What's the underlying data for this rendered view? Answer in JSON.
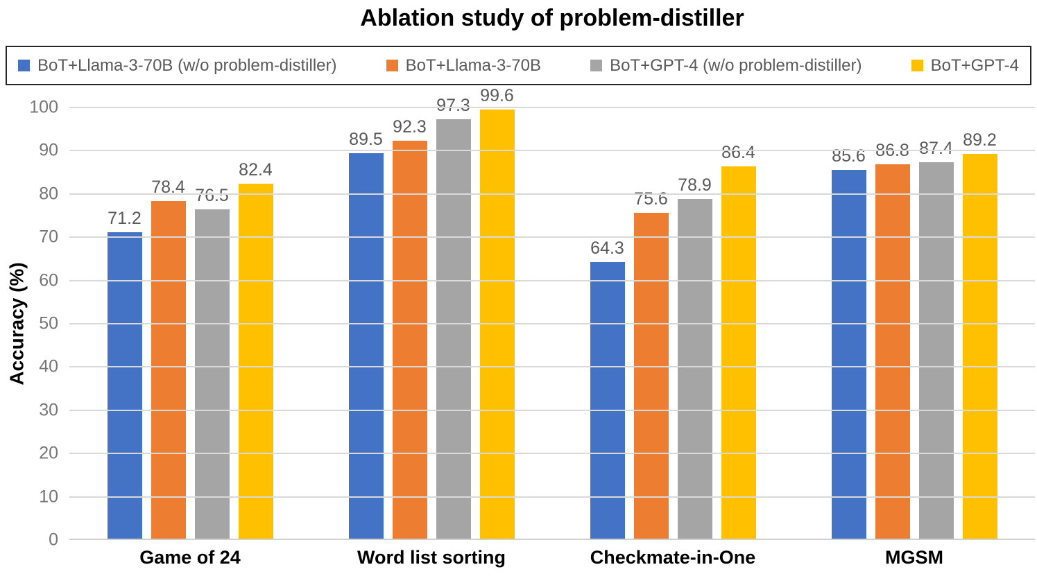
{
  "chart_data": {
    "type": "bar",
    "title": "Ablation study of problem-distiller",
    "categories": [
      "Game of 24",
      "Word list sorting",
      "Checkmate-in-One",
      "MGSM"
    ],
    "series": [
      {
        "name": "BoT+Llama-3-70B (w/o problem-distiller)",
        "color": "#4472C4",
        "values": [
          71.2,
          89.5,
          64.3,
          85.6
        ]
      },
      {
        "name": "BoT+Llama-3-70B",
        "color": "#ED7D31",
        "values": [
          78.4,
          92.3,
          75.6,
          86.8
        ]
      },
      {
        "name": "BoT+GPT-4 (w/o problem-distiller)",
        "color": "#A5A5A5",
        "values": [
          76.5,
          97.3,
          78.9,
          87.4
        ]
      },
      {
        "name": "BoT+GPT-4",
        "color": "#FFC000",
        "values": [
          82.4,
          99.6,
          86.4,
          89.2
        ]
      }
    ],
    "xlabel": "",
    "ylabel": "Accuracy (%)",
    "ylim": [
      0,
      100
    ],
    "yticks": [
      0,
      10,
      20,
      30,
      40,
      50,
      60,
      70,
      80,
      90,
      100
    ],
    "grid": true,
    "legend_position": "top",
    "value_labels_decimals": 1,
    "colors": {
      "gridline": "#D9D9D9",
      "tick_text": "#757575",
      "value_label_text": "#595959",
      "legend_text": "#595959",
      "legend_border": "#262626",
      "title_text": "#000000"
    }
  }
}
